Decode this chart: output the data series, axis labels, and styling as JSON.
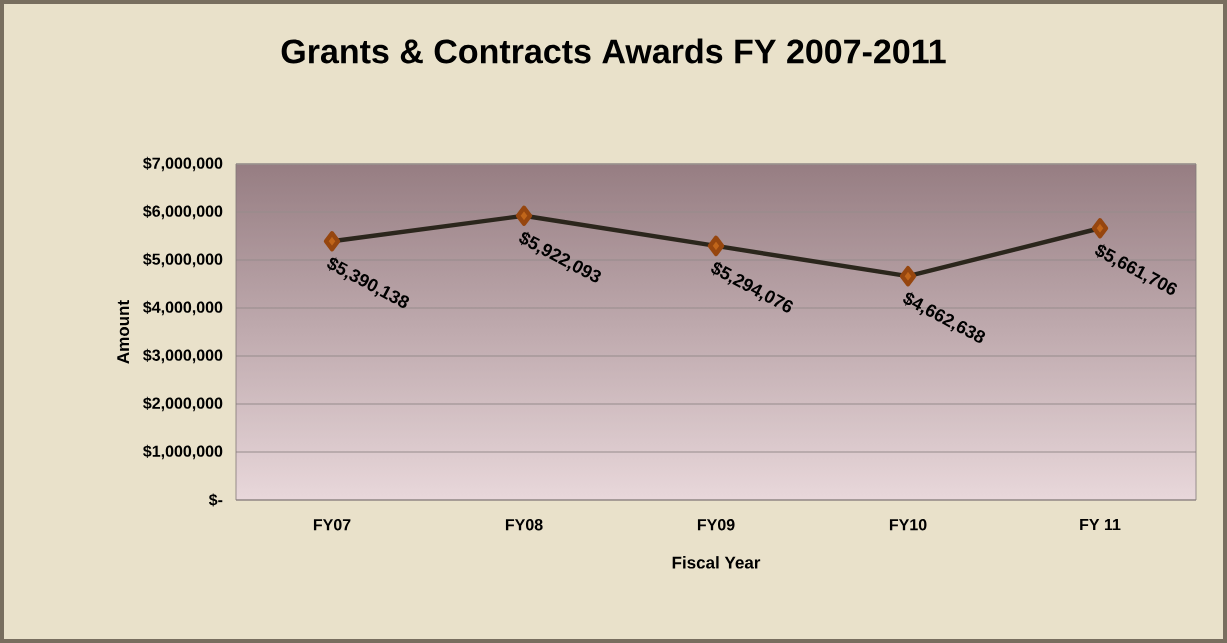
{
  "chart_data": {
    "type": "line",
    "title": "Grants & Contracts Awards FY 2007-2011",
    "xlabel": "Fiscal Year",
    "ylabel": "Amount",
    "categories": [
      "FY07",
      "FY08",
      "FY09",
      "FY10",
      "FY 11"
    ],
    "series": [
      {
        "color": "#2b261c",
        "values": [
          5390138,
          5922093,
          5294076,
          4662638,
          5661706
        ],
        "value_labels": [
          "$5,390,138",
          "$5,922,093",
          "$5,294,076",
          "$4,662,638",
          "$5,661,706"
        ]
      }
    ],
    "marker": "diamond",
    "grid": "y",
    "ylim": [
      0,
      7000000
    ],
    "yticks": [
      {
        "value": 0,
        "label": "$-"
      },
      {
        "value": 1000000,
        "label": "$1,000,000"
      },
      {
        "value": 2000000,
        "label": "$2,000,000"
      },
      {
        "value": 3000000,
        "label": "$3,000,000"
      },
      {
        "value": 4000000,
        "label": "$4,000,000"
      },
      {
        "value": 5000000,
        "label": "$5,000,000"
      },
      {
        "value": 6000000,
        "label": "$6,000,000"
      },
      {
        "value": 7000000,
        "label": "$7,000,000"
      }
    ]
  }
}
